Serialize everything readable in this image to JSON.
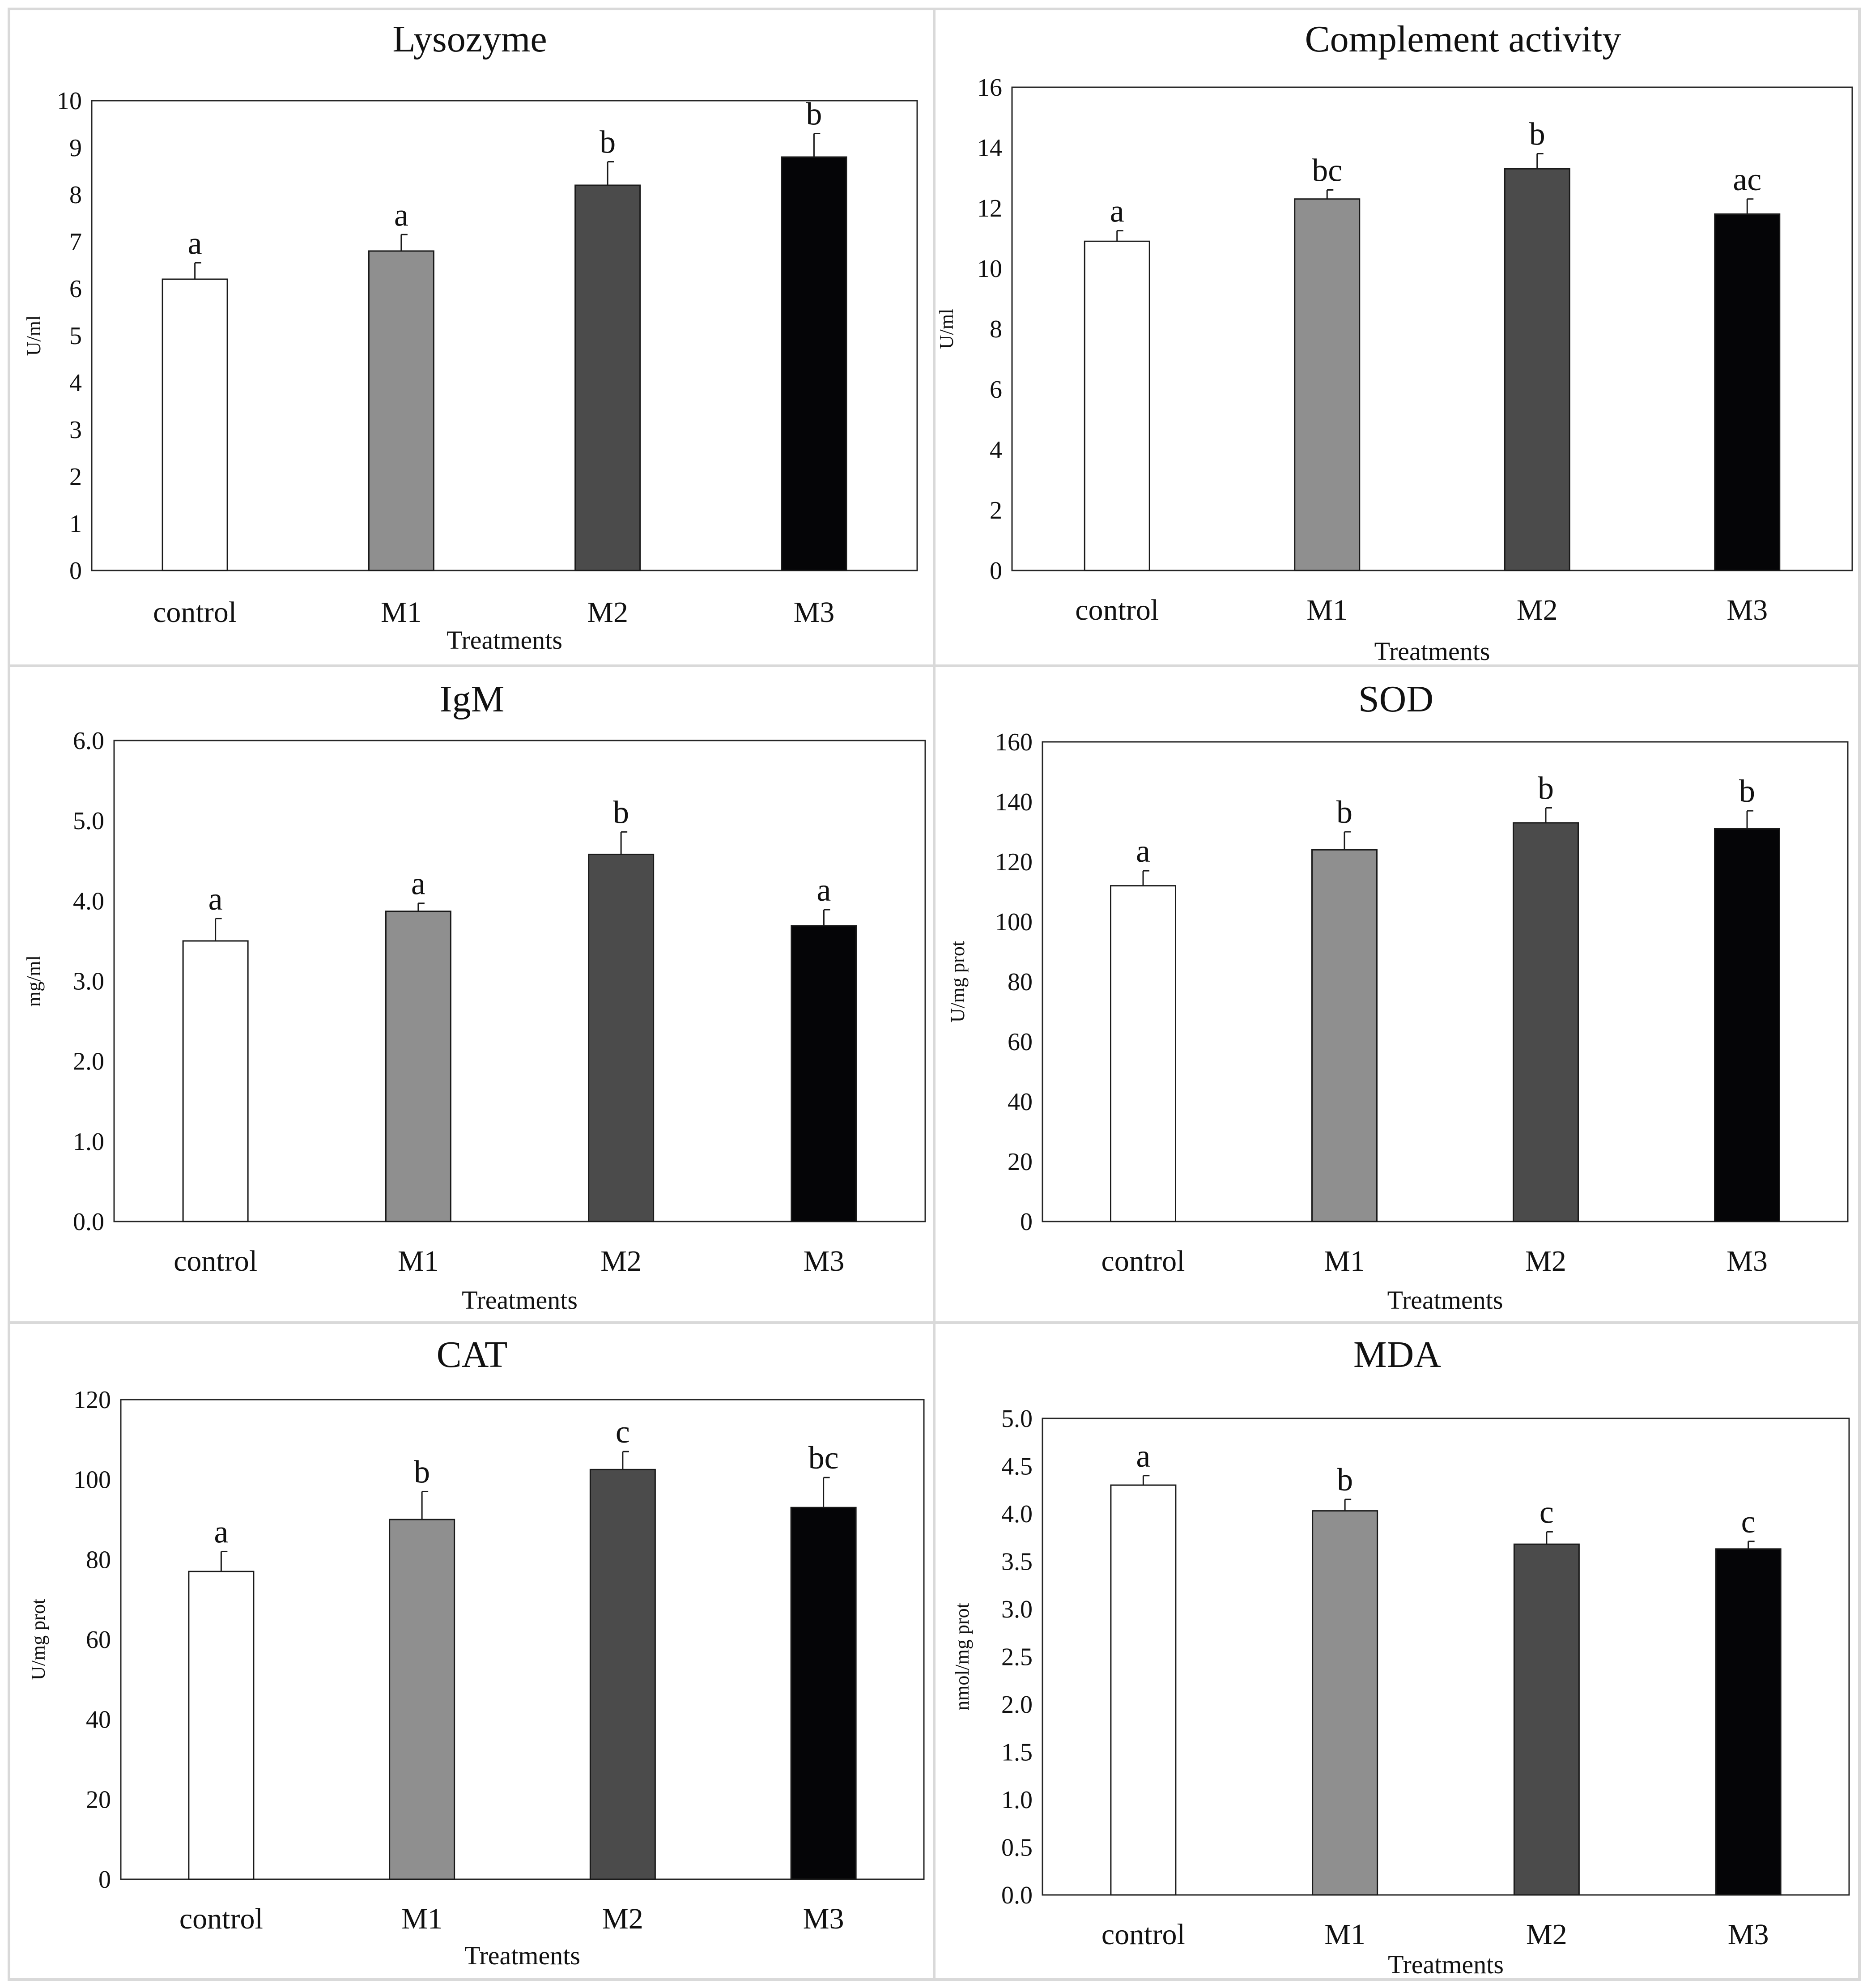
{
  "colors": {
    "control": "#ffffff",
    "M1": "#8f8f8f",
    "M2": "#4b4b4b",
    "M3": "#050507",
    "border": "#d9d9d9",
    "axis": "#262626"
  },
  "chart_data": [
    {
      "type": "bar",
      "title": "Lysozyme",
      "xlabel": "Treatments",
      "ylabel": "U/ml",
      "categories": [
        "control",
        "M1",
        "M2",
        "M3"
      ],
      "values": [
        6.2,
        6.8,
        8.2,
        8.8
      ],
      "errors": [
        0.35,
        0.35,
        0.5,
        0.5
      ],
      "letters": [
        "a",
        "a",
        "b",
        "b"
      ],
      "ylim": [
        0,
        10
      ],
      "yticks": [
        "0",
        "1",
        "2",
        "3",
        "4",
        "5",
        "6",
        "7",
        "8",
        "9",
        "10"
      ]
    },
    {
      "type": "bar",
      "title": "Complement  activity",
      "xlabel": "Treatments",
      "ylabel": "U/ml",
      "categories": [
        "control",
        "M1",
        "M2",
        "M3"
      ],
      "values": [
        10.9,
        12.3,
        13.3,
        11.8
      ],
      "errors": [
        0.35,
        0.3,
        0.5,
        0.5
      ],
      "letters": [
        "a",
        "bc",
        "b",
        "ac"
      ],
      "ylim": [
        0,
        16
      ],
      "yticks": [
        "0",
        "2",
        "4",
        "6",
        "8",
        "10",
        "12",
        "14",
        "16"
      ]
    },
    {
      "type": "bar",
      "title": "IgM",
      "xlabel": "Treatments",
      "ylabel": "mg/ml",
      "categories": [
        "control",
        "M1",
        "M2",
        "M3"
      ],
      "values": [
        3.5,
        3.87,
        4.58,
        3.69
      ],
      "errors": [
        0.28,
        0.1,
        0.28,
        0.2
      ],
      "letters": [
        "a",
        "a",
        "b",
        "a"
      ],
      "ylim": [
        0,
        6
      ],
      "yticks": [
        "0.0",
        "1.0",
        "2.0",
        "3.0",
        "4.0",
        "5.0",
        "6.0"
      ]
    },
    {
      "type": "bar",
      "title": "SOD",
      "xlabel": "Treatments",
      "ylabel": "U/mg prot",
      "categories": [
        "control",
        "M1",
        "M2",
        "M3"
      ],
      "values": [
        112,
        124,
        133,
        131
      ],
      "errors": [
        5,
        6,
        5,
        6
      ],
      "letters": [
        "a",
        "b",
        "b",
        "b"
      ],
      "ylim": [
        0,
        160
      ],
      "yticks": [
        "0",
        "20",
        "40",
        "60",
        "80",
        "100",
        "120",
        "140",
        "160"
      ]
    },
    {
      "type": "bar",
      "title": "CAT",
      "xlabel": "Treatments",
      "ylabel": "U/mg prot",
      "categories": [
        "control",
        "M1",
        "M2",
        "M3"
      ],
      "values": [
        77,
        90,
        102.5,
        93
      ],
      "errors": [
        5,
        7,
        4.5,
        7.5
      ],
      "letters": [
        "a",
        "b",
        "c",
        "bc"
      ],
      "ylim": [
        0,
        120
      ],
      "yticks": [
        "0",
        "20",
        "40",
        "60",
        "80",
        "100",
        "120"
      ]
    },
    {
      "type": "bar",
      "title": "MDA",
      "xlabel": "Treatments",
      "ylabel": "nmol/mg prot",
      "categories": [
        "control",
        "M1",
        "M2",
        "M3"
      ],
      "values": [
        4.3,
        4.03,
        3.68,
        3.63
      ],
      "errors": [
        0.1,
        0.12,
        0.13,
        0.08
      ],
      "letters": [
        "a",
        "b",
        "c",
        "c"
      ],
      "ylim": [
        0,
        5
      ],
      "yticks": [
        "0.0",
        "0.5",
        "1.0",
        "1.5",
        "2.0",
        "2.5",
        "3.0",
        "3.5",
        "4.0",
        "4.5",
        "5.0"
      ]
    }
  ]
}
